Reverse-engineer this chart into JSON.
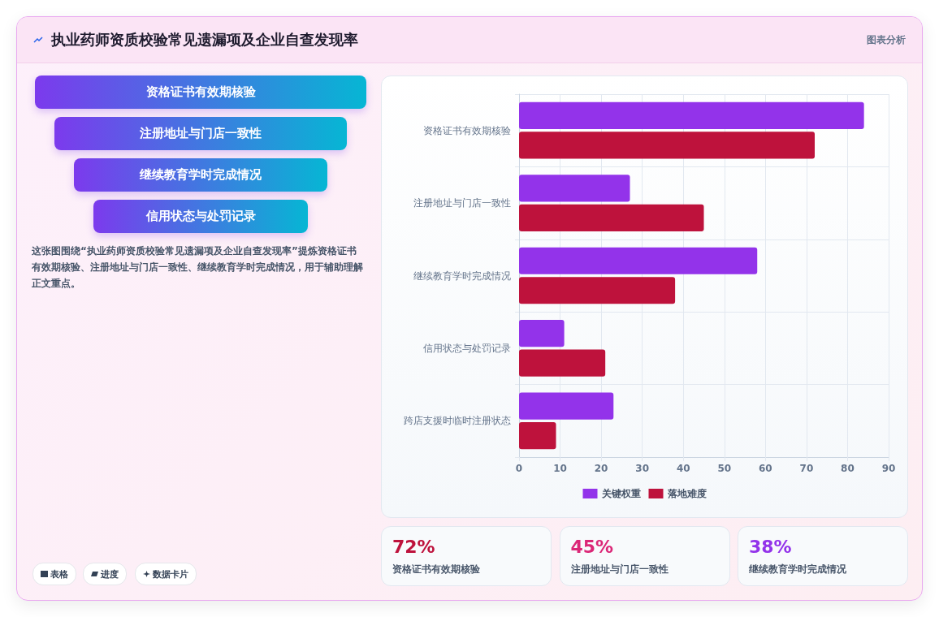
{
  "chart_data": {
    "type": "bar",
    "orientation": "horizontal",
    "title": "执业药师资质校验常见遗漏项及企业自查发现率",
    "categories": [
      "资格证书有效期核验",
      "注册地址与门店一致性",
      "继续教育学时完成情况",
      "信用状态与处罚记录",
      "跨店支援时临时注册状态"
    ],
    "series": [
      {
        "name": "关键权重",
        "color": "#9333ea",
        "values": [
          84,
          27,
          58,
          11,
          23
        ]
      },
      {
        "name": "落地难度",
        "color": "#be123c",
        "values": [
          72,
          45,
          38,
          21,
          9
        ]
      }
    ],
    "xlim": [
      0,
      90
    ],
    "xticks": [
      0,
      10,
      20,
      30,
      40,
      50,
      60,
      70,
      80,
      90
    ],
    "grid": true,
    "legend": "bottom",
    "annotations": [
      "图表分析",
      "资格证书有效期核验",
      "注册地址与门店一致性",
      "继续教育学时完成情况",
      "信用状态与处罚记录",
      "这张图围绕“执业药师资质校验常见遗漏项及企业自查发现率”提炼资格证书有效期核验、注册地址与门店一致性、继续教育学时完成情况，用于辅助理解正文重点。",
      "表格",
      "进度",
      "数据卡片",
      "72%",
      "资格证书有效期核验",
      "45%",
      "注册地址与门店一致性",
      "38%",
      "继续教育学时完成情况"
    ]
  }
}
